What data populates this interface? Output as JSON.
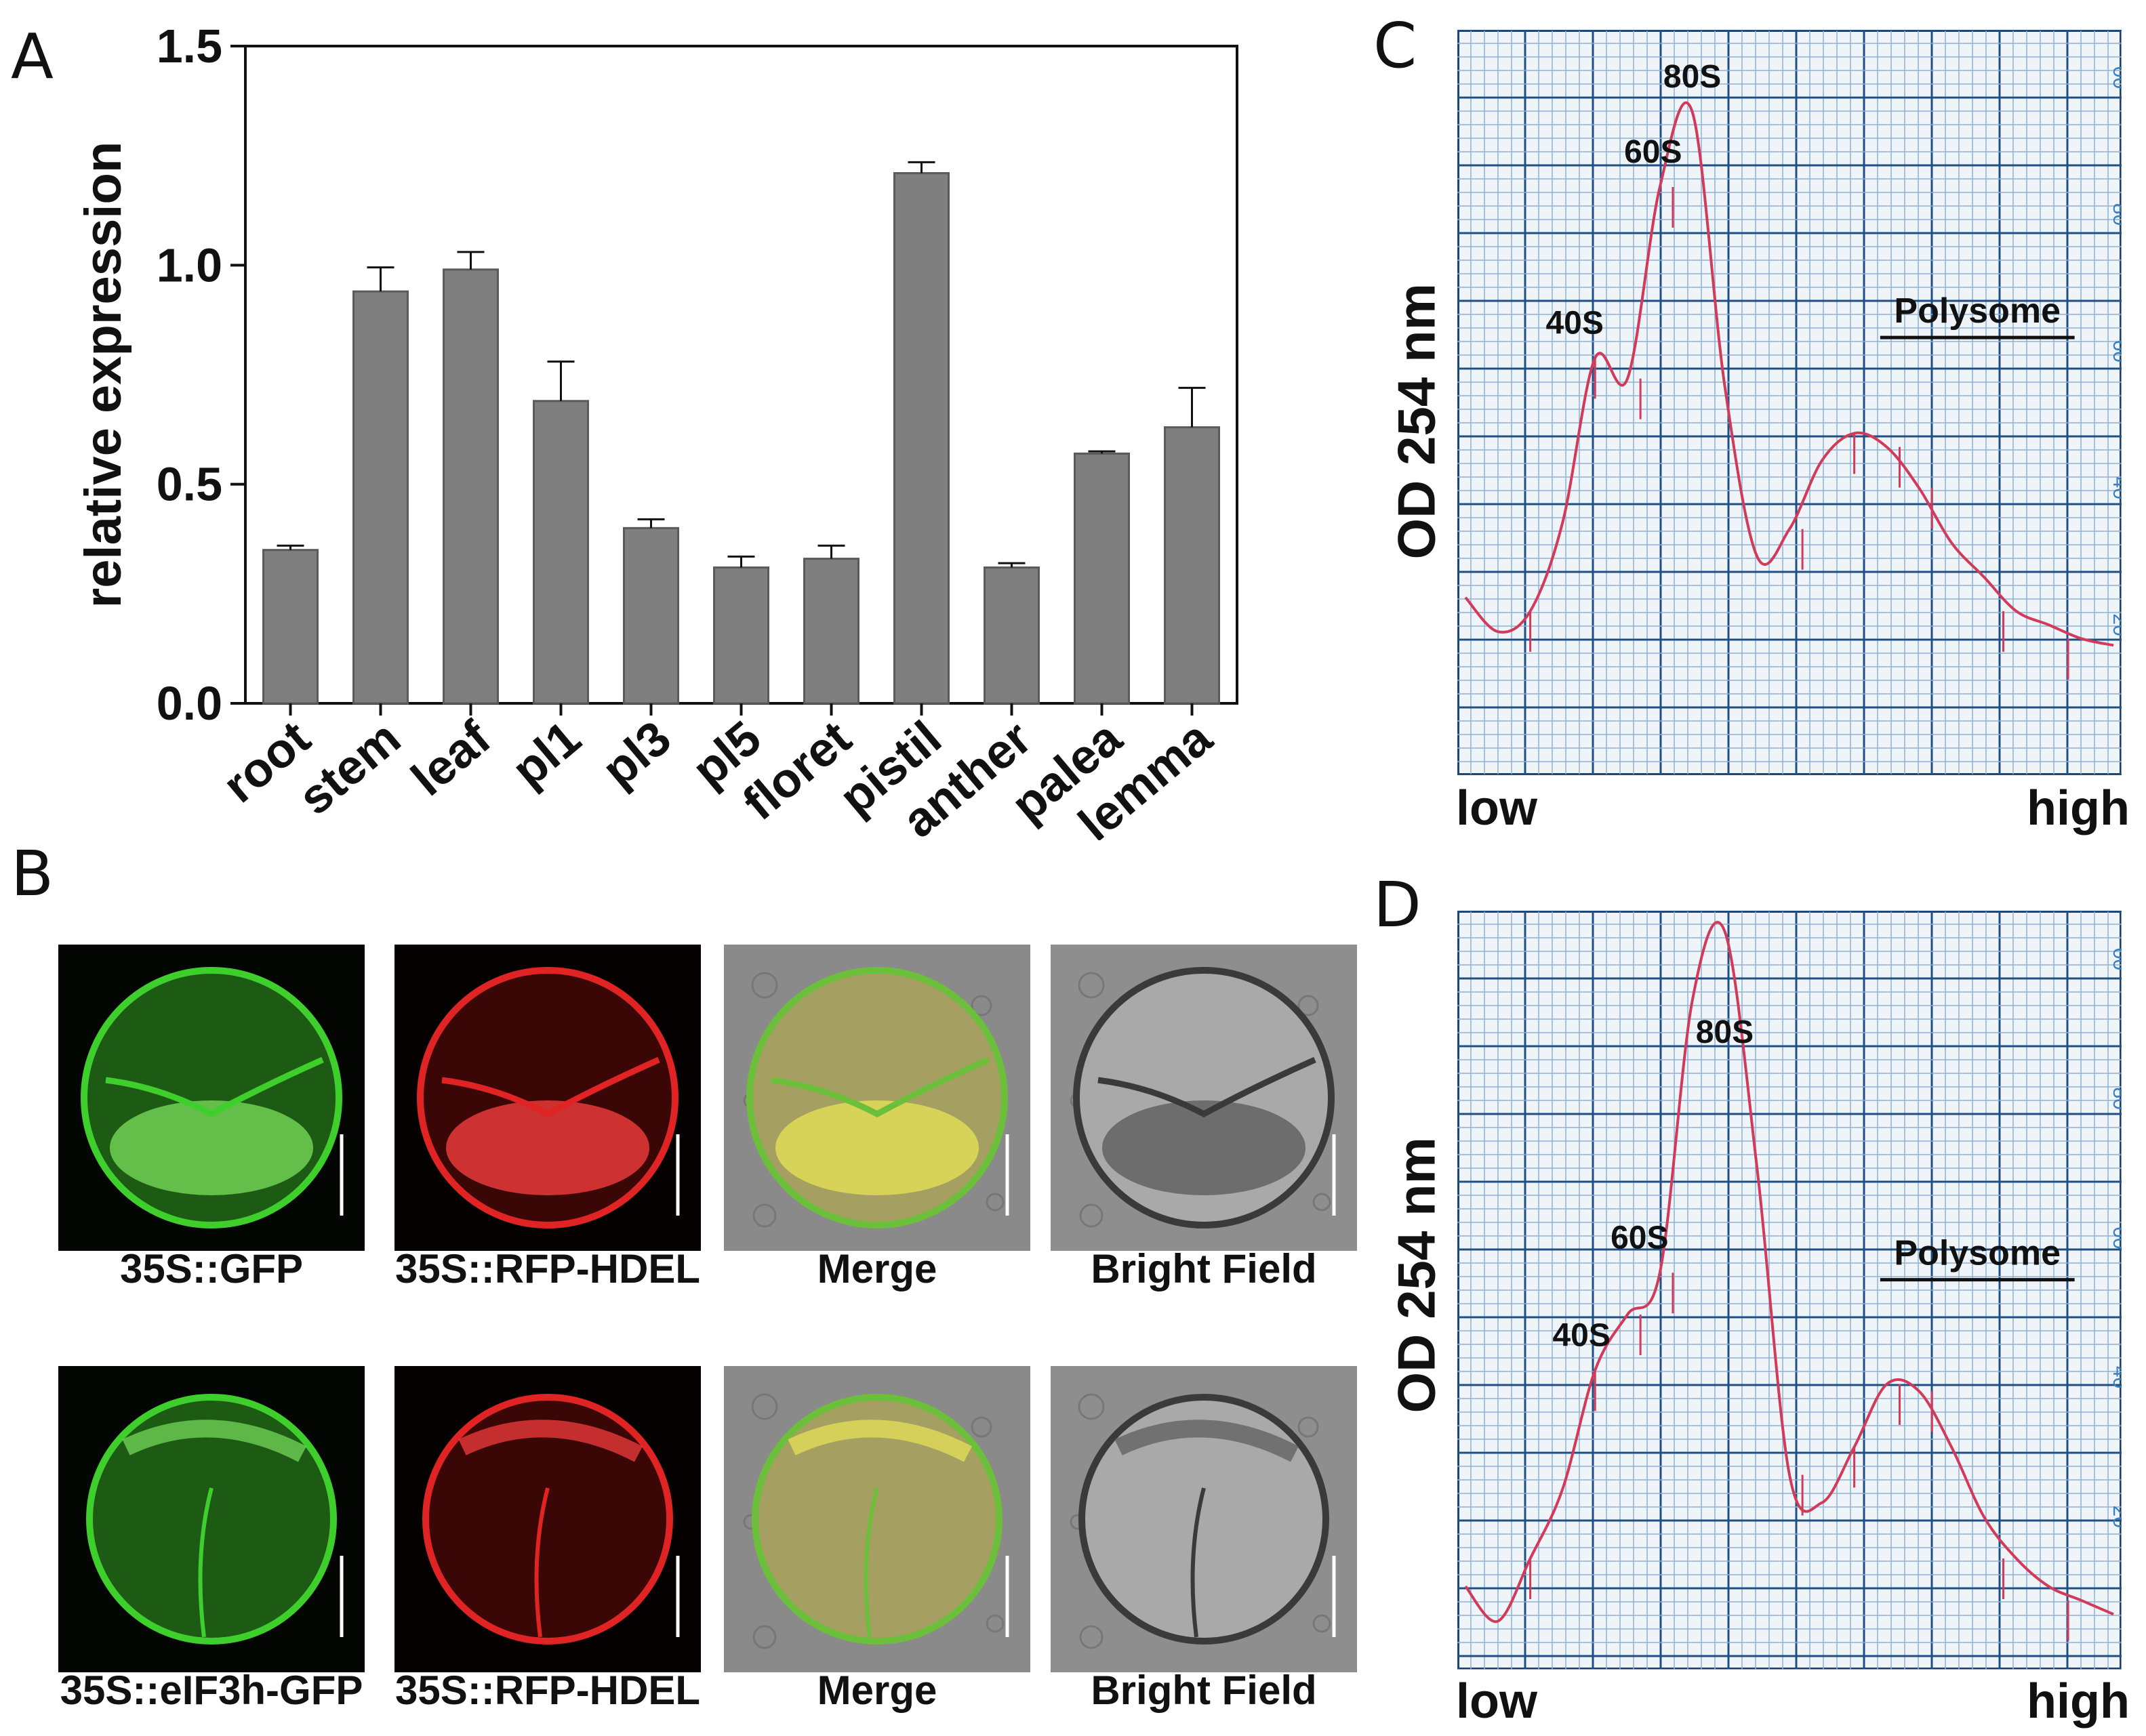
{
  "panels": {
    "A": "A",
    "B": "B",
    "C": "C",
    "D": "D"
  },
  "chart_data": [
    {
      "panel": "A",
      "type": "bar",
      "title": "",
      "xlabel": "",
      "ylabel": "relative expression",
      "ylim": [
        0.0,
        1.5
      ],
      "yticks": [
        "0.0",
        "0.5",
        "1.0",
        "1.5"
      ],
      "categories": [
        "root",
        "stem",
        "leaf",
        "pl1",
        "pl3",
        "pl5",
        "floret",
        "pistil",
        "anther",
        "palea",
        "lemma"
      ],
      "values": [
        0.35,
        0.94,
        0.99,
        0.69,
        0.4,
        0.31,
        0.33,
        1.21,
        0.31,
        0.57,
        0.63
      ],
      "errors": [
        0.01,
        0.055,
        0.04,
        0.09,
        0.02,
        0.025,
        0.03,
        0.025,
        0.01,
        0.005,
        0.09
      ],
      "bar_color": "#7f7f7f"
    },
    {
      "panel": "C",
      "type": "line",
      "ylabel": "OD 254 nm",
      "x_start_label": "low",
      "x_end_label": "high",
      "x": [
        0,
        5,
        10,
        15,
        20,
        25,
        30,
        35,
        40,
        45,
        50,
        55,
        60,
        65,
        70,
        75,
        80,
        85,
        90,
        95,
        100
      ],
      "y": [
        24,
        19,
        22,
        35,
        59,
        56,
        84,
        95,
        55,
        30,
        34,
        44,
        48,
        46,
        40,
        32,
        27,
        22,
        20,
        18,
        17
      ],
      "peaks": [
        "40S",
        "60S",
        "80S"
      ],
      "region_label": "Polysome",
      "scale_marks": [
        "20",
        "40",
        "60",
        "80",
        "00"
      ],
      "line_color": "#d23a5a"
    },
    {
      "panel": "D",
      "type": "line",
      "ylabel": "OD 254 nm",
      "x_start_label": "low",
      "x_end_label": "high",
      "x": [
        0,
        5,
        10,
        15,
        20,
        25,
        30,
        35,
        40,
        45,
        50,
        55,
        60,
        65,
        70,
        75,
        80,
        85,
        90,
        95,
        100
      ],
      "y": [
        10,
        5,
        14,
        24,
        41,
        49,
        55,
        94,
        104,
        70,
        26,
        22,
        30,
        39,
        38,
        30,
        20,
        14,
        10,
        8,
        6
      ],
      "peaks": [
        "40S",
        "60S",
        "80S"
      ],
      "region_label": "Polysome",
      "scale_marks": [
        "20",
        "40",
        "60",
        "80",
        "00"
      ],
      "line_color": "#d23a5a"
    }
  ],
  "microscopy": {
    "row1": [
      {
        "label": "35S::GFP",
        "channel": "green"
      },
      {
        "label": "35S::RFP-HDEL",
        "channel": "red"
      },
      {
        "label": "Merge",
        "channel": "merge"
      },
      {
        "label": "Bright Field",
        "channel": "bright"
      }
    ],
    "row2": [
      {
        "label": "35S::eIF3h-GFP",
        "channel": "green"
      },
      {
        "label": "35S::RFP-HDEL",
        "channel": "red"
      },
      {
        "label": "Merge",
        "channel": "merge"
      },
      {
        "label": "Bright Field",
        "channel": "bright"
      }
    ]
  }
}
